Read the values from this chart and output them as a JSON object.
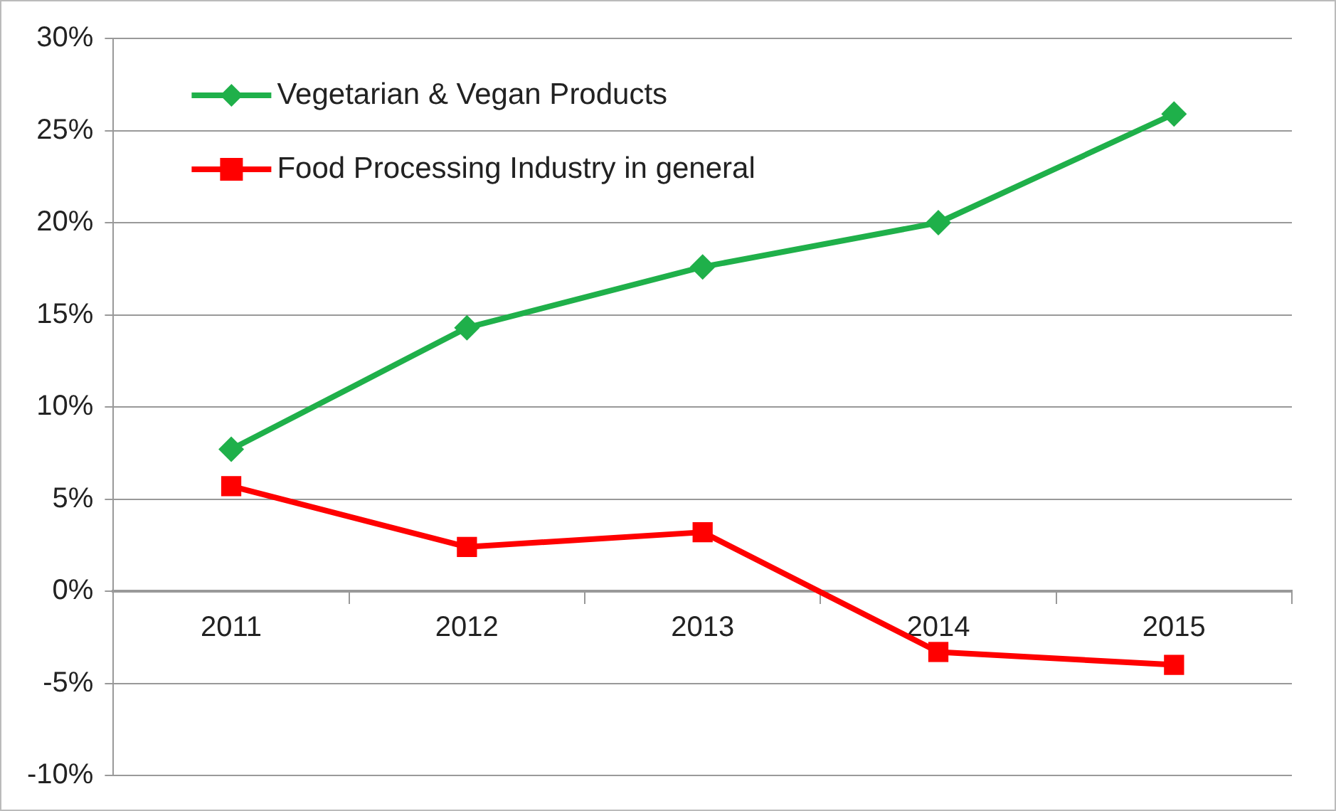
{
  "chart_data": {
    "type": "line",
    "categories": [
      "2011",
      "2012",
      "2013",
      "2014",
      "2015"
    ],
    "series": [
      {
        "name": "Vegetarian & Vegan Products",
        "color": "#1fb04a",
        "marker": "diamond",
        "values": [
          7.7,
          14.3,
          17.6,
          20.0,
          25.9
        ]
      },
      {
        "name": "Food Processing Industry in general",
        "color": "#ff0000",
        "marker": "square",
        "values": [
          5.7,
          2.4,
          3.2,
          -3.3,
          -4.0
        ]
      }
    ],
    "ylim": [
      -10,
      30
    ],
    "yticks": [
      {
        "value": -10,
        "label": "-10%"
      },
      {
        "value": -5,
        "label": "-5%"
      },
      {
        "value": 0,
        "label": "0%"
      },
      {
        "value": 5,
        "label": "5%"
      },
      {
        "value": 10,
        "label": "10%"
      },
      {
        "value": 15,
        "label": "15%"
      },
      {
        "value": 20,
        "label": "20%"
      },
      {
        "value": 25,
        "label": "25%"
      },
      {
        "value": 30,
        "label": "30%"
      }
    ],
    "grid": "y",
    "legend": "top left"
  }
}
